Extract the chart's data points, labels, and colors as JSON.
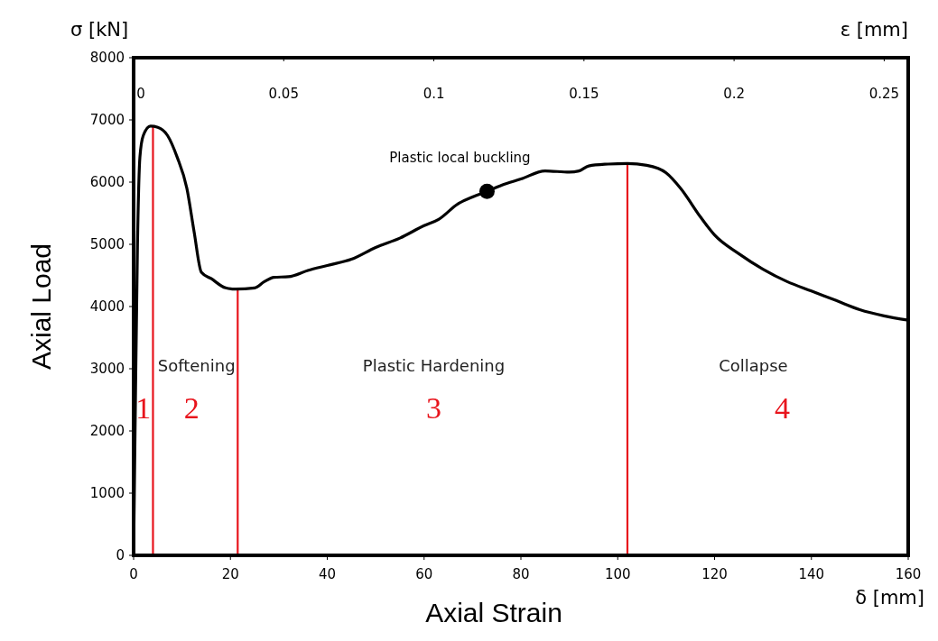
{
  "chart_data": {
    "type": "line",
    "xlabel": "Axial Strain",
    "ylabel": "Axial Load",
    "x2label": "ε [mm]",
    "xlim": [
      0,
      160
    ],
    "xticks": [
      0,
      20,
      40,
      60,
      80,
      100,
      120,
      140,
      160
    ],
    "ylim": [
      0,
      8000
    ],
    "yticks": [
      0,
      1000,
      2000,
      3000,
      4000,
      5000,
      6000,
      7000,
      8000
    ],
    "x2lim": [
      0,
      0.258
    ],
    "x2ticks": [
      0,
      0.05,
      0.1,
      0.15,
      0.2,
      0.25
    ],
    "grid": false,
    "marker": "none",
    "line_style": "solid",
    "series": [
      {
        "color": "#000000",
        "x": [
          0,
          0.3,
          0.8,
          1.3,
          2,
          3.5,
          5,
          7,
          9,
          11,
          12.5,
          14,
          16,
          19,
          21,
          25,
          27,
          29,
          32,
          36,
          40,
          45,
          50,
          55,
          60,
          63,
          67,
          70,
          73,
          76,
          80,
          85,
          90,
          92,
          94,
          98,
          102,
          106,
          110,
          113,
          117,
          120,
          125,
          130,
          135,
          140,
          145,
          150,
          155,
          160
        ],
        "values": [
          0,
          2000,
          5000,
          6400,
          6750,
          6900,
          6880,
          6750,
          6400,
          5900,
          5200,
          4550,
          4450,
          4300,
          4280,
          4300,
          4400,
          4470,
          4480,
          4580,
          4660,
          4760,
          4950,
          5100,
          5300,
          5400,
          5650,
          5760,
          5850,
          5950,
          6050,
          6180,
          6160,
          6180,
          6260,
          6290,
          6300,
          6270,
          6150,
          5900,
          5450,
          5150,
          4850,
          4600,
          4400,
          4250,
          4100,
          3950,
          3850,
          3780
        ]
      },
      {
        "type": "scatter",
        "color": "#000000",
        "marker": "circle",
        "x": [
          73
        ],
        "values": [
          5850
        ]
      }
    ],
    "ref_lines": [
      {
        "axis": "x",
        "value": 4,
        "color": "#e8141c"
      },
      {
        "axis": "x",
        "value": 21.5,
        "color": "#e8141c"
      },
      {
        "axis": "x",
        "value": 102,
        "color": "#e8141c"
      }
    ],
    "annotations": [
      {
        "text": "Plastic local buckling",
        "x": 73,
        "y": 5850
      },
      "Softening",
      "Plastic Hardening",
      "Collapse",
      "1",
      "2",
      "3",
      "4",
      "σ [kN]",
      "δ [mm]"
    ]
  }
}
